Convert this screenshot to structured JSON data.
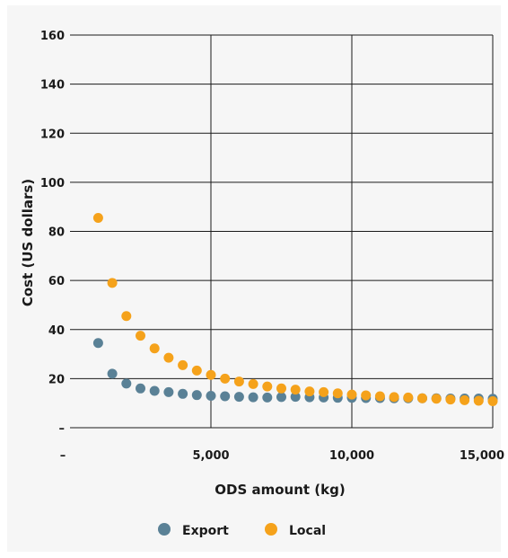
{
  "chart_data": {
    "type": "scatter",
    "title": "",
    "xlabel": "ODS amount (kg)",
    "ylabel": "Cost (US dollars)",
    "xlim": [
      0,
      15000
    ],
    "ylim": [
      0,
      160
    ],
    "x_ticks": [
      0,
      5000,
      10000,
      15000
    ],
    "x_tick_labels": [
      "–",
      "5,000",
      "10,000",
      "15,000"
    ],
    "y_ticks": [
      0,
      20,
      40,
      60,
      80,
      100,
      120,
      140,
      160
    ],
    "y_tick_labels": [
      "–",
      "20",
      "40",
      "60",
      "80",
      "100",
      "120",
      "140",
      "160"
    ],
    "grid": "horizontal and vertical",
    "legend_position": "bottom-center",
    "x": [
      1000,
      1500,
      2000,
      2500,
      3000,
      3500,
      4000,
      4500,
      5000,
      5500,
      6000,
      6500,
      7000,
      7500,
      8000,
      8500,
      9000,
      9500,
      10000,
      10500,
      11000,
      11500,
      12000,
      12500,
      13000,
      13500,
      14000,
      14500,
      15000
    ],
    "series": [
      {
        "name": "Export",
        "color": "#5a8196",
        "values": [
          34.5,
          22,
          18,
          16,
          15,
          14.5,
          13.8,
          13.3,
          13,
          12.8,
          12.6,
          12.4,
          12.3,
          12.5,
          12.6,
          12.4,
          12.3,
          12.2,
          12.2,
          12.1,
          12.1,
          12,
          12,
          12,
          12,
          11.9,
          11.9,
          11.9,
          11.8
        ]
      },
      {
        "name": "Local",
        "color": "#f5a21b",
        "values": [
          85.5,
          59,
          45.5,
          37.5,
          32.3,
          28.5,
          25.5,
          23.3,
          21.5,
          20,
          18.8,
          17.8,
          16.8,
          16,
          15.5,
          14.8,
          14.5,
          14,
          13.5,
          13.2,
          12.8,
          12.5,
          12.3,
          12,
          11.8,
          11.5,
          11.2,
          11,
          10.8
        ]
      }
    ]
  }
}
